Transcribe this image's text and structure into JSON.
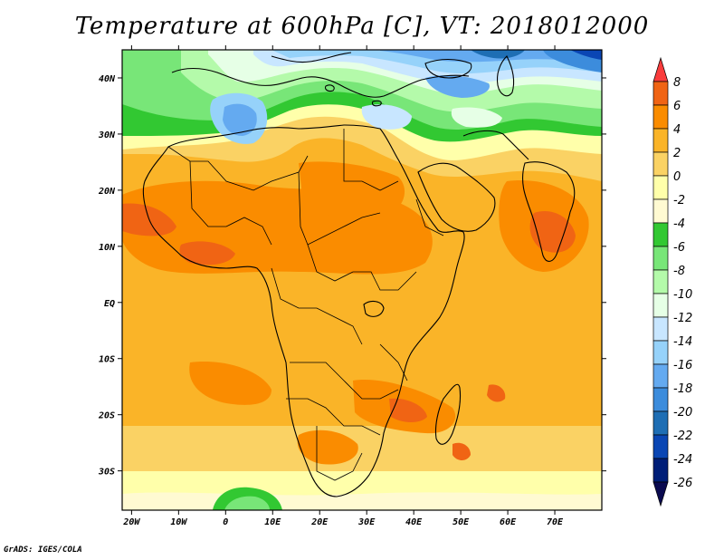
{
  "map": {
    "title": "Temperature at 600hPa [C], VT: 2018012000",
    "credit": "GrADS: IGES/COLA",
    "variable": "Temperature at 600hPa",
    "unit": "C",
    "valid_time": "2018012000",
    "lat_labels": [
      "40N",
      "30N",
      "20N",
      "10N",
      "EQ",
      "10S",
      "20S",
      "30S"
    ],
    "lat_values": [
      40,
      30,
      20,
      10,
      0,
      -10,
      -20,
      -30
    ],
    "lon_labels": [
      "20W",
      "10W",
      "0",
      "10E",
      "20E",
      "30E",
      "40E",
      "50E",
      "60E",
      "70E"
    ],
    "lon_values": [
      -20,
      -10,
      0,
      10,
      20,
      30,
      40,
      50,
      60,
      70
    ],
    "extent": {
      "lon_min": -22,
      "lon_max": 80,
      "lat_min": -37,
      "lat_max": 45
    }
  },
  "legend": {
    "labels": [
      "8",
      "6",
      "4",
      "2",
      "0",
      "-2",
      "-4",
      "-6",
      "-8",
      "-10",
      "-12",
      "-14",
      "-16",
      "-18",
      "-20",
      "-22",
      "-24",
      "-26"
    ],
    "colors": [
      "#fa3c3c",
      "#f06414",
      "#fa8c00",
      "#fab428",
      "#fad264",
      "#ffffaa",
      "#fffad2",
      "#32c832",
      "#78e678",
      "#b4faaa",
      "#e6ffe6",
      "#c8e6ff",
      "#96d2fa",
      "#64aaf0",
      "#3c8cdc",
      "#1e6eb4",
      "#0a46b4",
      "#001e78",
      "#0a0a50"
    ]
  }
}
